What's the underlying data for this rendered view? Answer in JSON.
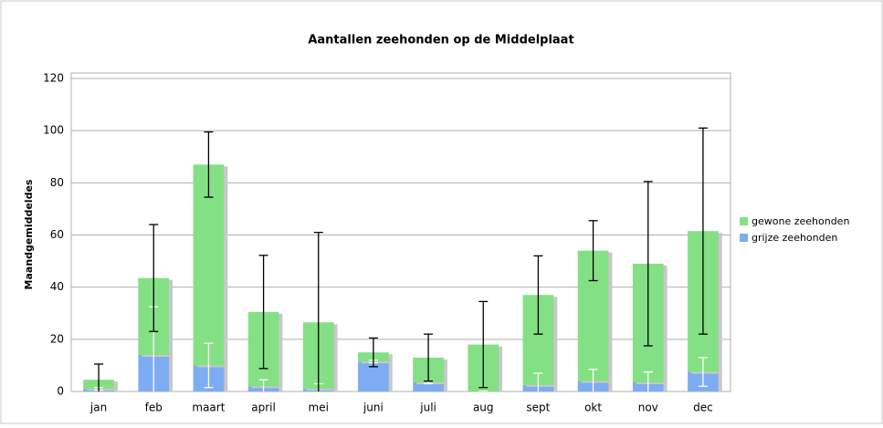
{
  "chart_data": {
    "type": "stacked_bar",
    "title": "Aantallen zeehonden op de Middelplaat",
    "y_label": "Maandgemiddeldes",
    "categories": [
      "jan",
      "feb",
      "maart",
      "april",
      "mei",
      "juni",
      "juli",
      "aug",
      "sept",
      "okt",
      "nov",
      "dec"
    ],
    "series": [
      {
        "name": "gewone zeehonden",
        "color": "#84e084",
        "error_color": "#000000",
        "values": [
          3.5,
          29.5,
          77,
          28.5,
          25.5,
          3.5,
          9.5,
          18,
          34.5,
          50,
          45.5,
          54
        ],
        "errors": [
          6,
          20.5,
          12.5,
          21.7,
          34.5,
          5.5,
          9,
          16.5,
          15,
          11.5,
          31.5,
          39.5
        ]
      },
      {
        "name": "grijze zeehonden",
        "color": "#7eacf2",
        "error_color": "#ffffff",
        "values": [
          1,
          14,
          10,
          2,
          1,
          11.5,
          3.5,
          0,
          2.5,
          4,
          3.5,
          7.5
        ],
        "errors": [
          0.5,
          18.5,
          8.5,
          2.5,
          2,
          0.5,
          0.5,
          0,
          4.5,
          4.5,
          4,
          5.5
        ]
      }
    ],
    "ylim": [
      0,
      120
    ],
    "yticks": [
      0,
      20,
      40,
      60,
      80,
      100,
      120
    ],
    "grid": true,
    "legend": "right"
  }
}
